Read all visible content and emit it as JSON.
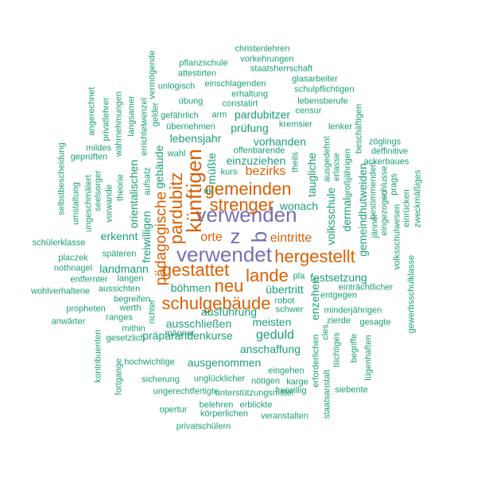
{
  "colors": {
    "purple": "#7570b3",
    "orange": "#d95f02",
    "green": "#1b9e77"
  },
  "words": {
    "verwenden": "verwenden",
    "verwendet": "verwendet",
    "z": "z",
    "b": "b",
    "kuenftigen": "künftigen",
    "pardubitz": "pardubitz",
    "gemeinden": "gemeinden",
    "strenger": "strenger",
    "hergestellt": "hergestellt",
    "gestattet": "gestattet",
    "lande": "lande",
    "neu": "neu",
    "schulgebaeude": "schulgebäude",
    "paedagogische": "pädagogische",
    "orte": "orte",
    "eintritte": "eintritte",
    "bezirks": "bezirks",
    "christenlehren": "christenlehren",
    "vorkehrungen": "vorkehrungen",
    "pflanzschule": "pflanzschule",
    "staatsherrschaft": "staatsherrschaft",
    "attestirten": "attestirten",
    "glasarbeiter": "glasarbeiter",
    "unlogisch": "unlogisch",
    "einschlagenden": "einschlagenden",
    "schulpflichtigen": "schulpflichtigen",
    "erhaltung": "erhaltung",
    "lebensberufe": "lebensberufe",
    "uebung": "übung",
    "constatirt": "constatirt",
    "censur": "censur",
    "gefaehrlich": "gefährlich",
    "arm": "arm",
    "pardubitzer": "pardubitzer",
    "uebernehmen": "übernehmen",
    "kremsier": "kremsier",
    "lenker": "lenker",
    "pruefung": "prüfung",
    "lebensjahr": "lebensjahr",
    "vorhanden": "vorhanden",
    "offenbarende": "offenbarende",
    "wahl": "wahl",
    "einzuziehen": "einzuziehen",
    "kurs": "kurs",
    "ek": "ek",
    "wonach": "wonach",
    "freiwilligen": "freiwilligen",
    "landmann": "landmann",
    "erkennt": "erkennt",
    "boehmen": "böhmen",
    "uebertritt": "übertritt",
    "pla": "pla",
    "festsetzung": "festsetzung",
    "eintraechtlicher": "einträchtlicher",
    "entgegen": "entgegen",
    "robot": "robot",
    "schwer": "schwer",
    "minderjaehrigen": "minderjährigen",
    "zierde": "zierde",
    "gesagte": "gesagte",
    "ausschliessen": "ausschließen",
    "meisten": "meisten",
    "geduld": "geduld",
    "praeparandenkurse": "präparandenkurse",
    "anschaffung": "anschaffung",
    "ausgenommen": "ausgenommen",
    "eingehen": "eingehen",
    "ungluecklicher": "unglücklicher",
    "noetigen": "nötigen",
    "karge": "karge",
    "sicherung": "sicherung",
    "freiwillig": "freiwillig",
    "ungerechtfertigte": "ungerechtfertigte",
    "unterstuetzungsmittel": "unterstützungsmittel",
    "siebente": "siebente",
    "belehren": "belehren",
    "erblickte": "erblickte",
    "opertur": "opertur",
    "koerperlichen": "körperlichen",
    "veranstalten": "veranstalten",
    "privatschuelern": "privatschülern",
    "schuelerklasse": "schülerklasse",
    "placzek": "placzek",
    "nothnagel": "nothnagel",
    "spaeteren": "späteren",
    "langen": "langen",
    "entfernter": "entfernter",
    "aussichten": "aussichten",
    "wohlverhaltene": "wohlverhaltene",
    "begreifen": "begreifen",
    "propheten": "propheten",
    "werth": "werth",
    "anwaerter": "anwärter",
    "ranges": "ranges",
    "mithin": "mithin",
    "maenner": "männer",
    "gesetzlich": "gesetzlich",
    "hochwichtige": "hochwichtige",
    "ausfuehrung": "ausführung",
    "mildes": "mildes",
    "gepruefter": "geprüften",
    "selbstbescheidung": "selbstbescheidung",
    "umstaltung": "umstaltung",
    "ungeschmaelert": "ungeschmälert",
    "seelsorger": "seelsorger",
    "vorwande": "vorwande",
    "theorie": "theorie",
    "orientalischen": "orientalischen",
    "gebaeude": "gebäude",
    "aufsatz": "aufsatz",
    "muesste": "müßte",
    "angerechnet": "angerechnet",
    "privatlehrer": "privatlehrer",
    "wahrnehmungen": "wahrnehmungen",
    "langsamer": "langsamer",
    "errichtet": "errichtet",
    "wenzel": "wenzel",
    "gelder": "gelder",
    "vermoegende": "vermögende",
    "theils": "theils",
    "taugliche": "taugliche",
    "ausgedehnt": "ausgedehnt",
    "volksschule": "volksschule",
    "dermal": "dermal",
    "erlasse": "erlasse",
    "grossjaehrigen": "großjährigen",
    "gemeindhutweiden": "gemeindhutweiden",
    "beschaeftigen": "beschäftigen",
    "zoeglings": "zöglings",
    "deffinitive": "deffinitive",
    "ackerbaues": "ackerbaues",
    "prags": "prags",
    "zweckmaessiges": "zweckmäßiges",
    "einruecken": "einrücken",
    "jaenner": "jänner",
    "bestimmenden": "bestimmenden",
    "eingezogen": "eingezogen",
    "schlusse": "schlusse",
    "volksschulwesen": "volksschulwesen",
    "gewerbsschulklasse": "gewerbsschulklasse",
    "enzehen": "enzehen",
    "cles": "cles",
    "erforderlichen": "erforderlichen",
    "tuechtiges": "tüchtiges",
    "begriffe": "begriffe",
    "luegenhaften": "lügenhaften",
    "staatsanstalt": "staatsanstalt",
    "richter": "richter",
    "kontribuenten": "kontribuenten",
    "fortgange": "fortgange"
  }
}
